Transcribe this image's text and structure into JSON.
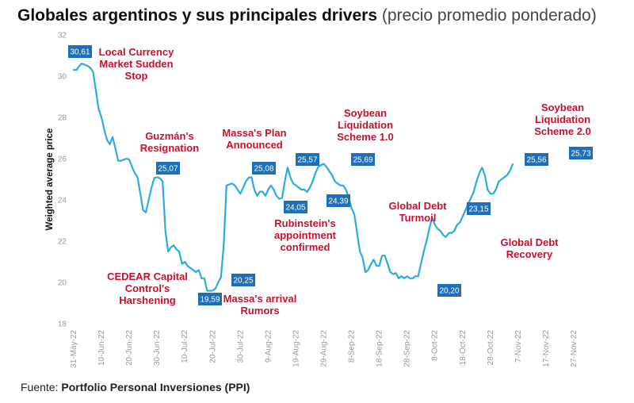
{
  "title": {
    "bold": "Globales argentinos y sus principales drivers",
    "light": "(precio promedio ponderado)"
  },
  "source": {
    "label": "Fuente:",
    "value": "Portfolio Personal Inversiones (PPI)"
  },
  "colors": {
    "line": "#29abe2",
    "label_box": "#1f6fb8",
    "annotation": "#c8102e"
  },
  "chart_data": {
    "type": "line",
    "ylabel": "Weighted average price",
    "ylim": [
      18,
      32
    ],
    "yticks": [
      18,
      20,
      22,
      24,
      26,
      28,
      30,
      32
    ],
    "xlim": [
      0,
      180
    ],
    "xticks": [
      {
        "d": 0,
        "label": "31-May-22"
      },
      {
        "d": 10,
        "label": "10-Jun-22"
      },
      {
        "d": 20,
        "label": "20-Jun-22"
      },
      {
        "d": 30,
        "label": "30-Jun-22"
      },
      {
        "d": 40,
        "label": "10-Jul-22"
      },
      {
        "d": 50,
        "label": "20-Jul-22"
      },
      {
        "d": 60,
        "label": "30-Jul-22"
      },
      {
        "d": 70,
        "label": "9-Aug-22"
      },
      {
        "d": 80,
        "label": "19-Aug-22"
      },
      {
        "d": 90,
        "label": "29-Aug-22"
      },
      {
        "d": 100,
        "label": "8-Sep-22"
      },
      {
        "d": 110,
        "label": "18-Sep-22"
      },
      {
        "d": 120,
        "label": "28-Sep-22"
      },
      {
        "d": 130,
        "label": "8-Oct-22"
      },
      {
        "d": 140,
        "label": "18-Oct-22"
      },
      {
        "d": 150,
        "label": "28-Oct-22"
      },
      {
        "d": 160,
        "label": "7-Nov-22"
      },
      {
        "d": 170,
        "label": "17-Nov-22"
      },
      {
        "d": 180,
        "label": "27-Nov-22"
      }
    ],
    "series": [
      {
        "name": "Weighted average price",
        "points": [
          [
            0,
            30.3
          ],
          [
            1,
            30.3
          ],
          [
            2,
            30.5
          ],
          [
            3,
            30.61
          ],
          [
            4,
            30.55
          ],
          [
            5,
            30.5
          ],
          [
            6,
            30.4
          ],
          [
            7,
            30.2
          ],
          [
            8,
            29.3
          ],
          [
            9,
            28.4
          ],
          [
            10,
            28.0
          ],
          [
            11,
            27.4
          ],
          [
            12,
            26.9
          ],
          [
            13,
            26.7
          ],
          [
            14,
            27.05
          ],
          [
            15,
            26.5
          ],
          [
            16,
            25.9
          ],
          [
            17,
            25.9
          ],
          [
            18,
            25.95
          ],
          [
            19,
            26.0
          ],
          [
            20,
            25.95
          ],
          [
            21,
            25.6
          ],
          [
            22,
            25.3
          ],
          [
            23,
            25.1
          ],
          [
            24,
            24.3
          ],
          [
            25,
            23.5
          ],
          [
            26,
            23.4
          ],
          [
            27,
            24.0
          ],
          [
            28,
            24.6
          ],
          [
            29,
            25.07
          ],
          [
            30,
            25.1
          ],
          [
            31,
            25.05
          ],
          [
            32,
            24.9
          ],
          [
            33,
            22.5
          ],
          [
            34,
            21.5
          ],
          [
            35,
            21.7
          ],
          [
            36,
            21.8
          ],
          [
            37,
            21.6
          ],
          [
            38,
            21.5
          ],
          [
            39,
            20.9
          ],
          [
            40,
            21.0
          ],
          [
            41,
            20.8
          ],
          [
            42,
            20.7
          ],
          [
            43,
            20.6
          ],
          [
            44,
            20.5
          ],
          [
            45,
            20.6
          ],
          [
            46,
            20.2
          ],
          [
            47,
            20.2
          ],
          [
            48,
            19.6
          ],
          [
            49,
            19.59
          ],
          [
            50,
            19.6
          ],
          [
            51,
            19.7
          ],
          [
            52,
            20.0
          ],
          [
            53,
            20.25
          ],
          [
            54,
            21.8
          ],
          [
            55,
            24.7
          ],
          [
            56,
            24.75
          ],
          [
            57,
            24.8
          ],
          [
            58,
            24.7
          ],
          [
            59,
            24.5
          ],
          [
            60,
            24.3
          ],
          [
            61,
            24.6
          ],
          [
            62,
            24.9
          ],
          [
            63,
            25.08
          ],
          [
            64,
            25.1
          ],
          [
            65,
            24.5
          ],
          [
            66,
            24.2
          ],
          [
            67,
            24.4
          ],
          [
            68,
            24.4
          ],
          [
            69,
            24.2
          ],
          [
            70,
            24.5
          ],
          [
            71,
            24.7
          ],
          [
            72,
            24.5
          ],
          [
            73,
            24.2
          ],
          [
            74,
            24.05
          ],
          [
            75,
            24.1
          ],
          [
            76,
            24.9
          ],
          [
            77,
            25.57
          ],
          [
            78,
            25.1
          ],
          [
            79,
            24.8
          ],
          [
            80,
            24.7
          ],
          [
            81,
            24.6
          ],
          [
            82,
            24.5
          ],
          [
            83,
            24.5
          ],
          [
            84,
            24.39
          ],
          [
            85,
            24.6
          ],
          [
            86,
            24.9
          ],
          [
            87,
            25.3
          ],
          [
            88,
            25.6
          ],
          [
            89,
            25.69
          ],
          [
            90,
            25.75
          ],
          [
            91,
            25.6
          ],
          [
            92,
            25.4
          ],
          [
            93,
            25.2
          ],
          [
            94,
            24.9
          ],
          [
            95,
            24.8
          ],
          [
            96,
            24.7
          ],
          [
            97,
            24.7
          ],
          [
            98,
            24.5
          ],
          [
            99,
            24.1
          ],
          [
            100,
            23.6
          ],
          [
            101,
            23.3
          ],
          [
            102,
            22.4
          ],
          [
            103,
            21.5
          ],
          [
            104,
            21.2
          ],
          [
            105,
            20.5
          ],
          [
            106,
            20.6
          ],
          [
            107,
            20.9
          ],
          [
            108,
            21.1
          ],
          [
            109,
            20.8
          ],
          [
            110,
            20.8
          ],
          [
            111,
            21.3
          ],
          [
            112,
            21.3
          ],
          [
            113,
            20.9
          ],
          [
            114,
            20.5
          ],
          [
            115,
            20.4
          ],
          [
            116,
            20.45
          ],
          [
            117,
            20.2
          ],
          [
            118,
            20.3
          ],
          [
            119,
            20.2
          ],
          [
            120,
            20.3
          ],
          [
            121,
            20.2
          ],
          [
            122,
            20.2
          ],
          [
            123,
            20.3
          ],
          [
            124,
            20.3
          ],
          [
            125,
            20.9
          ],
          [
            126,
            21.5
          ],
          [
            127,
            22.0
          ],
          [
            128,
            22.6
          ],
          [
            129,
            23.15
          ],
          [
            130,
            22.8
          ],
          [
            131,
            22.6
          ],
          [
            132,
            22.5
          ],
          [
            133,
            22.3
          ],
          [
            134,
            22.2
          ],
          [
            135,
            22.4
          ],
          [
            136,
            22.4
          ],
          [
            137,
            22.5
          ],
          [
            138,
            22.8
          ],
          [
            139,
            22.9
          ],
          [
            140,
            23.2
          ],
          [
            141,
            23.5
          ],
          [
            142,
            23.8
          ],
          [
            143,
            24.1
          ],
          [
            144,
            24.4
          ],
          [
            145,
            24.9
          ],
          [
            146,
            25.3
          ],
          [
            147,
            25.56
          ],
          [
            148,
            25.2
          ],
          [
            149,
            24.5
          ],
          [
            150,
            24.3
          ],
          [
            151,
            24.3
          ],
          [
            152,
            24.5
          ],
          [
            153,
            24.9
          ],
          [
            154,
            25.0
          ],
          [
            155,
            25.1
          ],
          [
            156,
            25.2
          ],
          [
            157,
            25.4
          ],
          [
            158,
            25.73
          ]
        ]
      }
    ],
    "data_labels": [
      {
        "d": 3,
        "v": 30.61,
        "label": "30,61"
      },
      {
        "d": 29,
        "v": 25.07,
        "label": "25,07"
      },
      {
        "d": 49,
        "v": 19.59,
        "label": "19,59"
      },
      {
        "d": 53,
        "v": 20.25,
        "label": "20,25"
      },
      {
        "d": 63,
        "v": 25.08,
        "label": "25,08"
      },
      {
        "d": 74,
        "v": 24.05,
        "label": "24,05"
      },
      {
        "d": 77,
        "v": 25.57,
        "label": "25,57"
      },
      {
        "d": 84,
        "v": 24.39,
        "label": "24,39"
      },
      {
        "d": 89,
        "v": 25.69,
        "label": "25,69"
      },
      {
        "d": 119,
        "v": 20.2,
        "label": "20,20"
      },
      {
        "d": 129,
        "v": 23.15,
        "label": "23,15"
      },
      {
        "d": 147,
        "v": 25.56,
        "label": "25,56"
      },
      {
        "d": 158,
        "v": 25.73,
        "label": "25,73"
      }
    ],
    "annotations": [
      {
        "lines": [
          "Local Currency",
          "Market Sudden",
          "Stop"
        ]
      },
      {
        "lines": [
          "Guzmán's",
          "Resignation"
        ]
      },
      {
        "lines": [
          "CEDEAR Capital",
          "Control's",
          "Harshening"
        ]
      },
      {
        "lines": [
          "Massa's Plan",
          "Announced"
        ]
      },
      {
        "lines": [
          "Massa's arrival",
          "Rumors"
        ]
      },
      {
        "lines": [
          "Rubinstein's",
          "appointment",
          "confirmed"
        ]
      },
      {
        "lines": [
          "Soybean",
          "Liquidation",
          "Scheme 1.0"
        ]
      },
      {
        "lines": [
          "Global Debt",
          "Turmoil"
        ]
      },
      {
        "lines": [
          "Global Debt",
          "Recovery"
        ]
      },
      {
        "lines": [
          "Soybean",
          "Liquidation",
          "Scheme 2.0"
        ]
      }
    ]
  }
}
